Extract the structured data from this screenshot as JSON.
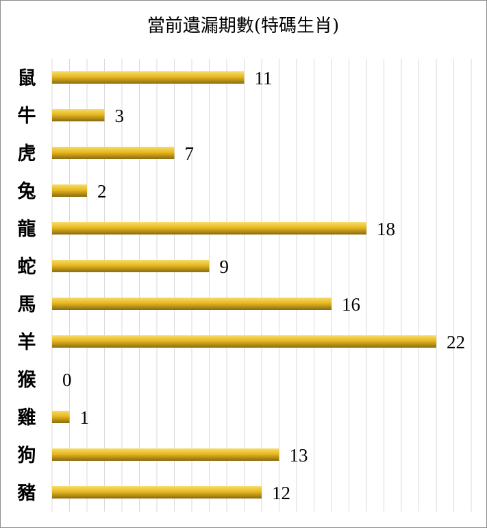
{
  "chart_data": {
    "type": "bar",
    "orientation": "horizontal",
    "title": "當前遺漏期數(特碼生肖)",
    "categories": [
      "鼠",
      "牛",
      "虎",
      "兔",
      "龍",
      "蛇",
      "馬",
      "羊",
      "猴",
      "雞",
      "狗",
      "豬"
    ],
    "values": [
      11,
      3,
      7,
      2,
      18,
      9,
      16,
      22,
      0,
      1,
      13,
      12
    ],
    "xlim": [
      0,
      24
    ],
    "grid": true,
    "legend": "none",
    "data_labels": true,
    "bar_color": "#e8b820",
    "bar_color_dark": "#8a6a10",
    "bar_color_light": "#f7dc6a"
  }
}
